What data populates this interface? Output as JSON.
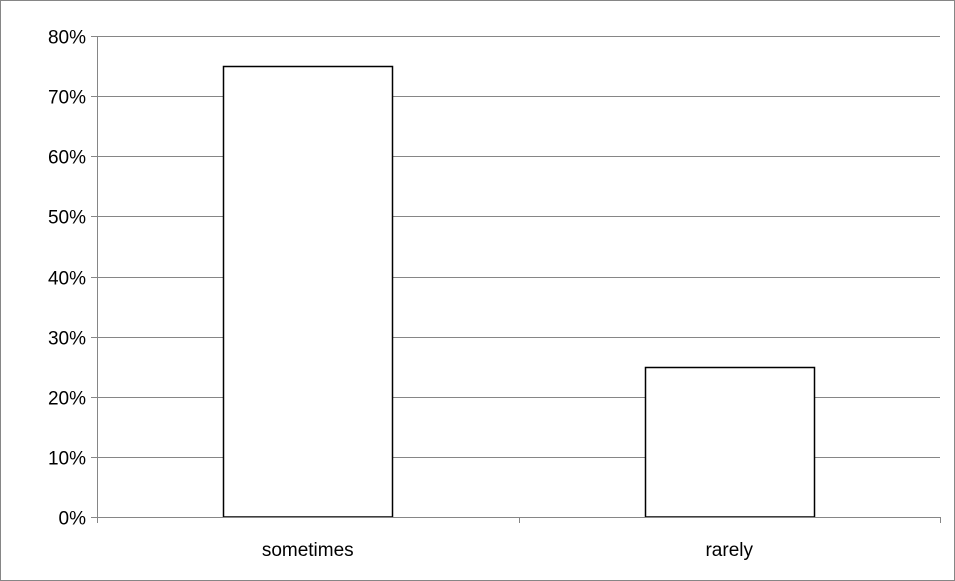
{
  "chart_data": {
    "type": "bar",
    "title": "",
    "xlabel": "",
    "ylabel": "",
    "categories": [
      "sometimes",
      "rarely"
    ],
    "values": [
      0.75,
      0.25
    ],
    "ylim": [
      0,
      0.8
    ],
    "ytick_values": [
      0,
      0.1,
      0.2,
      0.3,
      0.4,
      0.5,
      0.6,
      0.7,
      0.8
    ],
    "ytick_labels": [
      "0%",
      "10%",
      "20%",
      "30%",
      "40%",
      "50%",
      "60%",
      "70%",
      "80%"
    ],
    "grid": "horizontal",
    "legend": "none",
    "colors": {
      "bar_fill": "#ffffff",
      "bar_stroke": "#000000",
      "gridline": "#868686",
      "axis": "#868686",
      "frame": "#868686"
    }
  }
}
